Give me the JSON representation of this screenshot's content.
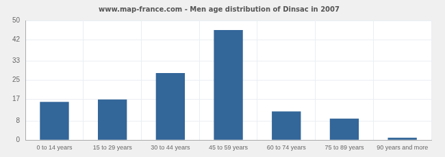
{
  "chart_data": {
    "type": "bar",
    "title": "www.map-france.com - Men age distribution of Dinsac in 2007",
    "categories": [
      "0 to 14 years",
      "15 to 29 years",
      "30 to 44 years",
      "45 to 59 years",
      "60 to 74 years",
      "75 to 89 years",
      "90 years and more"
    ],
    "values": [
      16,
      17,
      28,
      46,
      12,
      9,
      1
    ],
    "color": "#336699",
    "ylim": [
      0,
      50
    ],
    "yticks": [
      0,
      8,
      17,
      25,
      33,
      42,
      50
    ],
    "grid": true
  }
}
